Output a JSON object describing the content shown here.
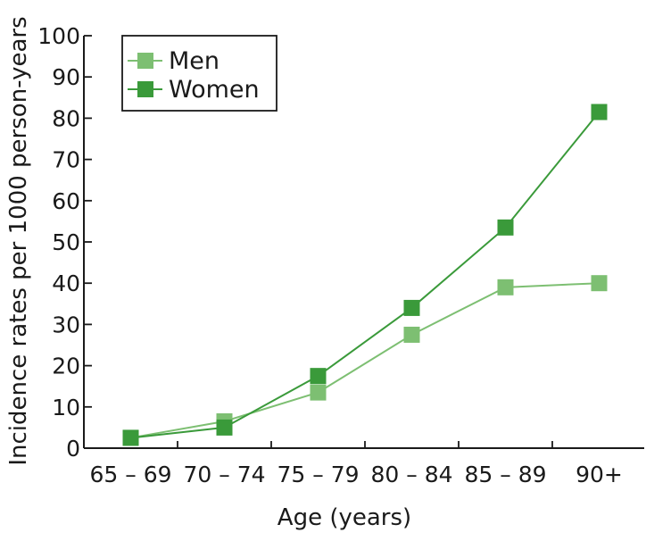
{
  "chart_data": {
    "type": "line",
    "title": "",
    "xlabel": "Age (years)",
    "ylabel": "Incidence rates per 1000 person-years",
    "categories": [
      "65 – 69",
      "70 – 74",
      "75 – 79",
      "80 – 84",
      "85 – 89",
      "90+"
    ],
    "yticks": [
      0,
      10,
      20,
      30,
      40,
      50,
      60,
      70,
      80,
      90,
      100
    ],
    "ylim": [
      0,
      100
    ],
    "grid": false,
    "legend_position": "top-left",
    "marker": "square-icon",
    "series": [
      {
        "name": "Men",
        "color": "#7dbf72",
        "values": [
          2.5,
          6.5,
          13.5,
          27.5,
          39,
          40
        ]
      },
      {
        "name": "Women",
        "color": "#3a9a3a",
        "values": [
          2.5,
          5,
          17.5,
          34,
          53.5,
          81.5
        ]
      }
    ]
  }
}
